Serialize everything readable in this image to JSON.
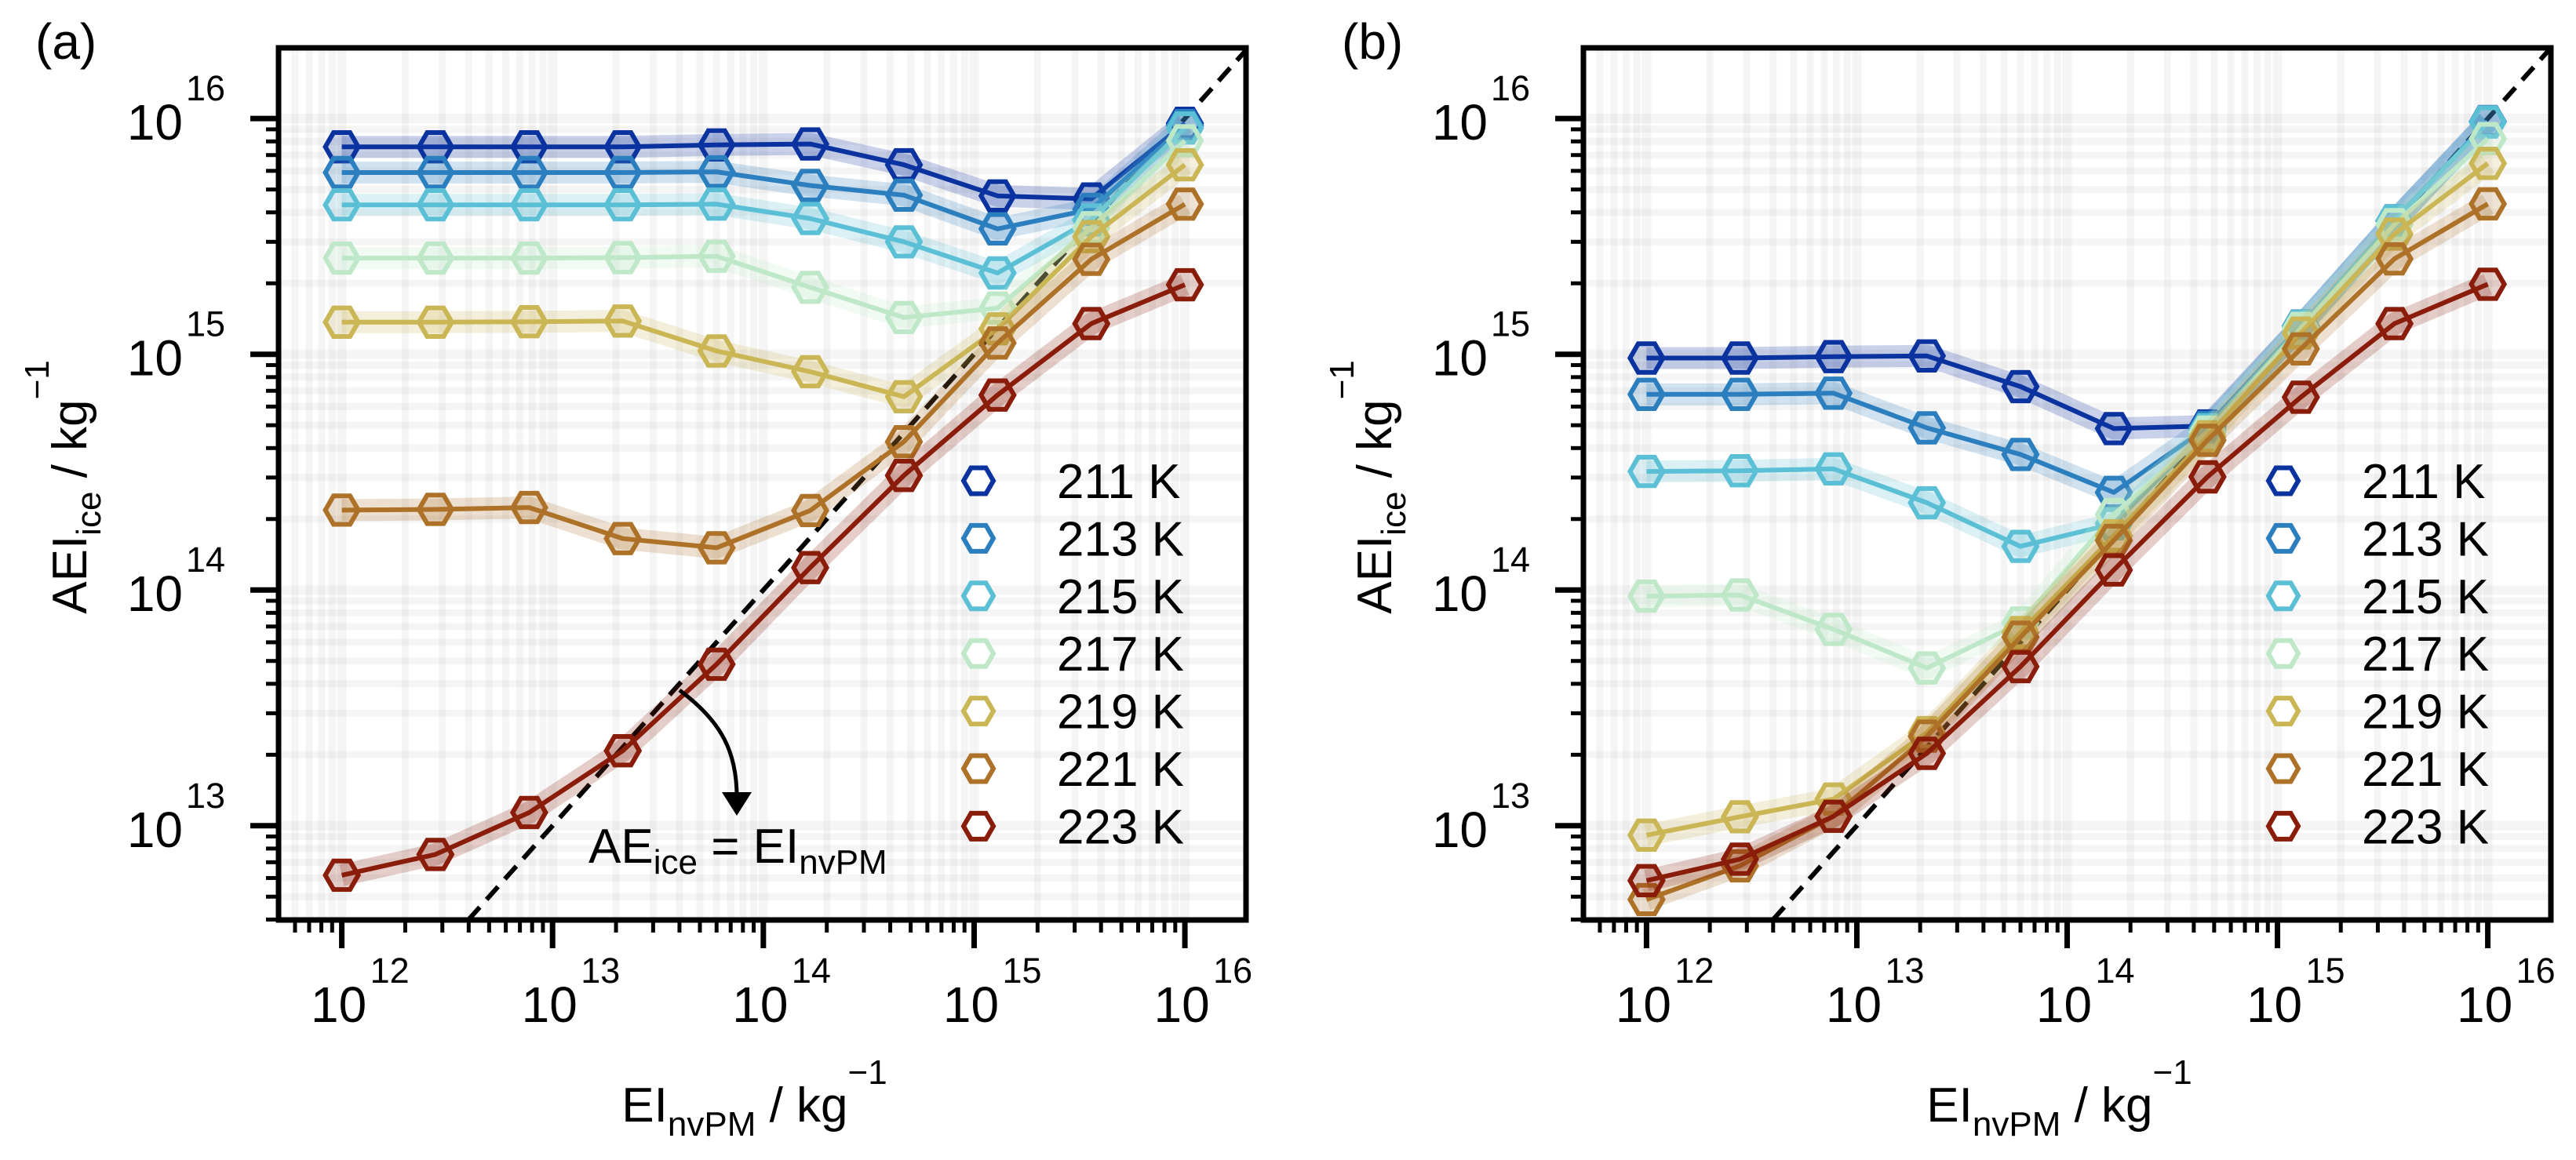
{
  "figure": {
    "panels": [
      "(a)",
      "(b)"
    ]
  },
  "chart_data": [
    {
      "panel_label": "(a)",
      "type": "line",
      "xscale": "log",
      "yscale": "log",
      "xlabel": {
        "base": "EI",
        "sub": "nvPM",
        "unit": " / kg",
        "sup": "−1"
      },
      "ylabel": {
        "base": "AEI",
        "sub": "ice",
        "unit": " / kg",
        "sup": "−1"
      },
      "xlim_log10": [
        11.7,
        16.29
      ],
      "ylim_log10": [
        12.6,
        16.3
      ],
      "xticks_log10": [
        12,
        13,
        14,
        15,
        16
      ],
      "yticks_log10": [
        13,
        14,
        15,
        16
      ],
      "tick_label_base": "10",
      "grid": true,
      "legend_position": "lower-right",
      "reference_line": {
        "label": "AE_ice = EI_nvPM",
        "style": "dashed",
        "slope": 1,
        "annotation": {
          "base": "AE",
          "sub1": "ice",
          "mid": " = EI",
          "sub2": "nvPM"
        }
      },
      "x_log10": [
        12,
        12.444,
        12.889,
        13.333,
        13.778,
        14.222,
        14.667,
        15.111,
        15.556,
        16
      ],
      "series": [
        {
          "name": "211 K",
          "color": "#0a33a0",
          "values_log10": [
            15.88,
            15.88,
            15.88,
            15.88,
            15.888,
            15.892,
            15.804,
            15.672,
            15.659,
            15.98
          ]
        },
        {
          "name": "213 K",
          "color": "#2c7fbf",
          "values_log10": [
            15.771,
            15.771,
            15.771,
            15.771,
            15.774,
            15.716,
            15.675,
            15.532,
            15.615,
            15.97
          ]
        },
        {
          "name": "215 K",
          "color": "#5bc0d5",
          "values_log10": [
            15.634,
            15.634,
            15.634,
            15.634,
            15.637,
            15.576,
            15.477,
            15.345,
            15.57,
            15.96
          ]
        },
        {
          "name": "217 K",
          "color": "#bfe8c8",
          "values_log10": [
            15.408,
            15.408,
            15.408,
            15.41,
            15.416,
            15.284,
            15.156,
            15.196,
            15.537,
            15.906
          ]
        },
        {
          "name": "219 K",
          "color": "#cbb655",
          "values_log10": [
            15.136,
            15.136,
            15.138,
            15.141,
            15.014,
            14.926,
            14.82,
            15.108,
            15.499,
            15.804
          ]
        },
        {
          "name": "221 K",
          "color": "#ad7128",
          "values_log10": [
            14.339,
            14.342,
            14.35,
            14.218,
            14.179,
            14.337,
            14.629,
            15.048,
            15.403,
            15.637
          ]
        },
        {
          "name": "223 K",
          "color": "#8a1c0a",
          "values_log10": [
            12.79,
            12.878,
            13.056,
            13.318,
            13.685,
            14.095,
            14.486,
            14.827,
            15.13,
            15.295
          ]
        }
      ]
    },
    {
      "panel_label": "(b)",
      "type": "line",
      "xscale": "log",
      "yscale": "log",
      "xlabel": {
        "base": "EI",
        "sub": "nvPM",
        "unit": " / kg",
        "sup": "−1"
      },
      "ylabel": {
        "base": "AEI",
        "sub": "ice",
        "unit": " / kg",
        "sup": "−1"
      },
      "xlim_log10": [
        11.7,
        16.3
      ],
      "ylim_log10": [
        12.6,
        16.3
      ],
      "xticks_log10": [
        12,
        13,
        14,
        15,
        16
      ],
      "yticks_log10": [
        13,
        14,
        15,
        16
      ],
      "tick_label_base": "10",
      "grid": true,
      "legend_position": "lower-right",
      "reference_line": {
        "label": "AE_ice = EI_nvPM",
        "style": "dashed",
        "slope": 1
      },
      "x_log10": [
        12,
        12.444,
        12.889,
        13.333,
        13.778,
        14.222,
        14.667,
        15.111,
        15.556,
        16
      ],
      "series": [
        {
          "name": "211 K",
          "color": "#0a33a0",
          "values_log10": [
            14.984,
            14.984,
            14.99,
            14.993,
            14.863,
            14.685,
            14.696,
            15.12,
            15.566,
            15.987
          ]
        },
        {
          "name": "213 K",
          "color": "#2c7fbf",
          "values_log10": [
            14.83,
            14.83,
            14.835,
            14.688,
            14.575,
            14.414,
            14.69,
            15.12,
            15.566,
            15.987
          ]
        },
        {
          "name": "215 K",
          "color": "#5bc0d5",
          "values_log10": [
            14.503,
            14.506,
            14.514,
            14.37,
            14.185,
            14.281,
            14.68,
            15.118,
            15.566,
            15.985
          ]
        },
        {
          "name": "217 K",
          "color": "#bfe8c8",
          "values_log10": [
            13.974,
            13.979,
            13.833,
            13.669,
            13.86,
            14.32,
            14.67,
            15.11,
            15.55,
            15.915
          ]
        },
        {
          "name": "219 K",
          "color": "#cbb655",
          "values_log10": [
            12.96,
            13.038,
            13.113,
            13.395,
            13.82,
            14.23,
            14.65,
            15.09,
            15.51,
            15.81
          ]
        },
        {
          "name": "221 K",
          "color": "#ad7128",
          "values_log10": [
            12.687,
            12.83,
            13.04,
            13.38,
            13.8,
            14.21,
            14.635,
            15.023,
            15.405,
            15.638
          ]
        },
        {
          "name": "223 K",
          "color": "#8a1c0a",
          "values_log10": [
            12.767,
            12.858,
            13.04,
            13.307,
            13.675,
            14.085,
            14.48,
            14.818,
            15.13,
            15.297
          ]
        }
      ]
    }
  ]
}
